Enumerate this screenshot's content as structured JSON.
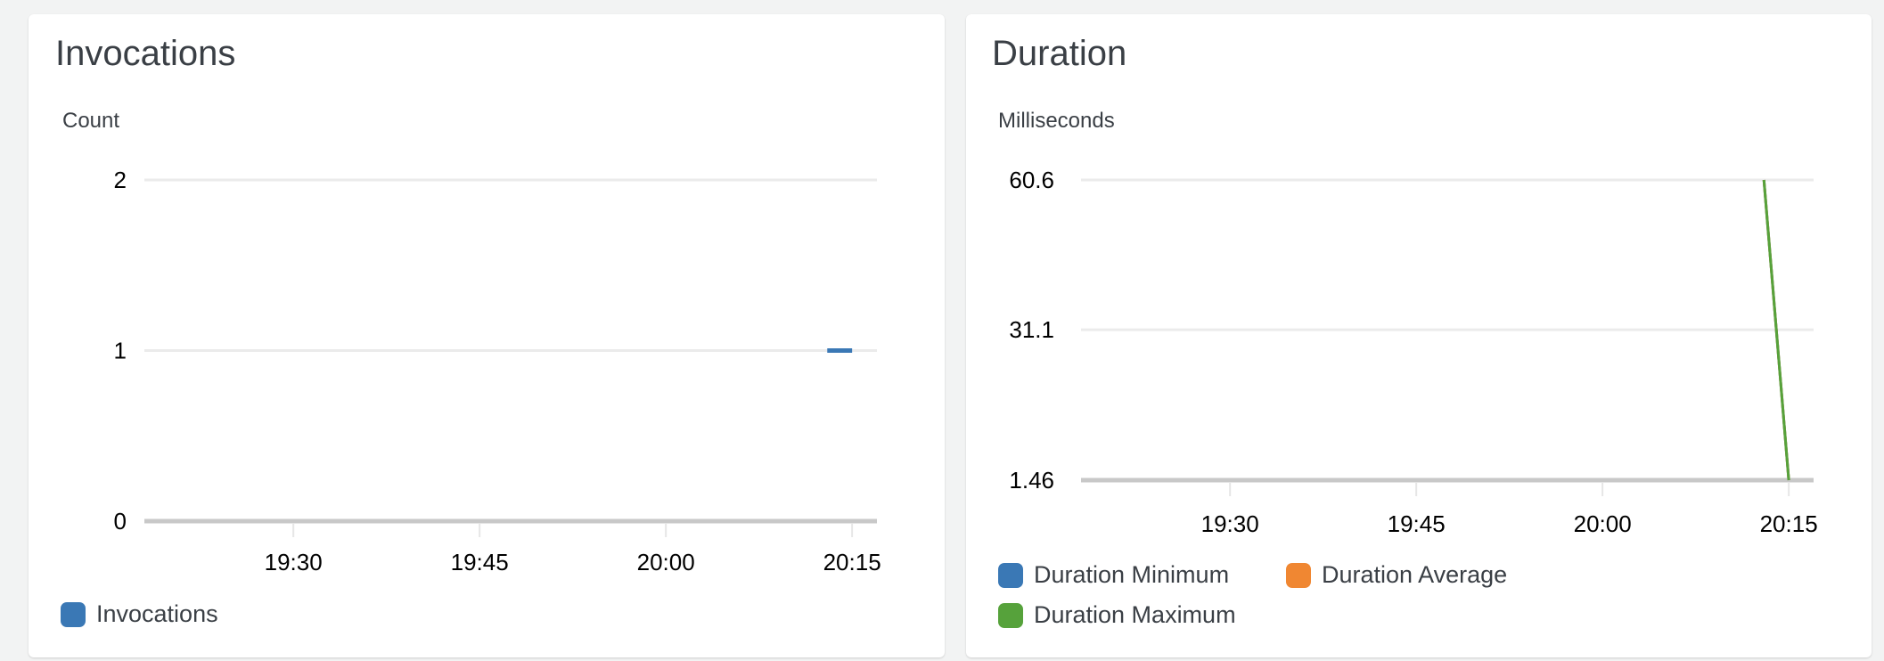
{
  "chart_data": [
    {
      "type": "line",
      "title": "Invocations",
      "ylabel": "Count",
      "ylim": [
        0,
        2
      ],
      "yticks": [
        "2",
        "1",
        "0"
      ],
      "ytick_values": [
        2,
        1,
        0
      ],
      "xticks": [
        "19:30",
        "19:45",
        "20:00",
        "20:15"
      ],
      "xlim": [
        "19:18",
        "20:17"
      ],
      "grid": true,
      "legend": "bottom-left",
      "series": [
        {
          "name": "Invocations",
          "color": "#3a78b5",
          "points": [
            {
              "x": "20:13",
              "y": 1
            },
            {
              "x": "20:15",
              "y": 1
            }
          ]
        }
      ]
    },
    {
      "type": "line",
      "title": "Duration",
      "ylabel": "Milliseconds",
      "ylim": [
        1.46,
        60.6
      ],
      "yticks": [
        "60.6",
        "31.1",
        "1.46"
      ],
      "ytick_values": [
        60.6,
        31.1,
        1.46
      ],
      "xticks": [
        "19:30",
        "19:45",
        "20:00",
        "20:15"
      ],
      "xlim": [
        "19:18",
        "20:17"
      ],
      "grid": true,
      "legend": "bottom-left",
      "series": [
        {
          "name": "Duration Minimum",
          "color": "#3a78b5",
          "points": [
            {
              "x": "20:13",
              "y": 60.6
            },
            {
              "x": "20:15",
              "y": 1.46
            }
          ]
        },
        {
          "name": "Duration Average",
          "color": "#f08732",
          "points": [
            {
              "x": "20:13",
              "y": 60.6
            },
            {
              "x": "20:15",
              "y": 1.46
            }
          ]
        },
        {
          "name": "Duration Maximum",
          "color": "#56a23b",
          "points": [
            {
              "x": "20:13",
              "y": 60.6
            },
            {
              "x": "20:15",
              "y": 1.46
            }
          ]
        }
      ]
    }
  ]
}
